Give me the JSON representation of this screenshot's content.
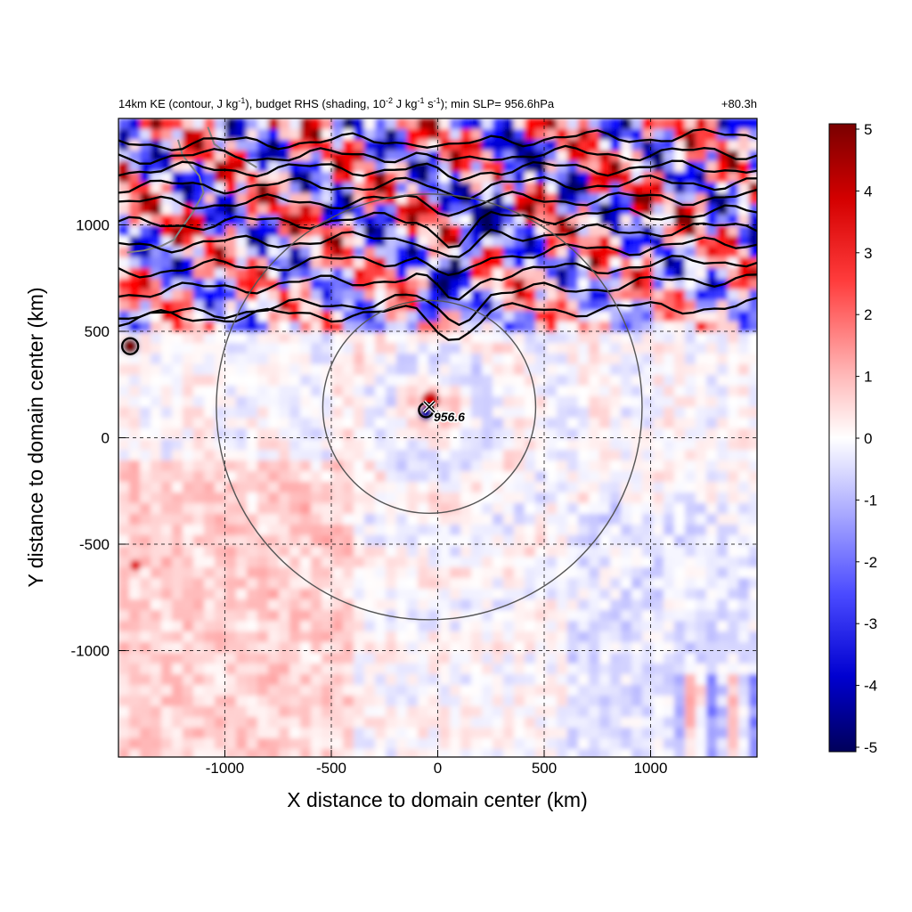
{
  "chart_data": {
    "type": "heatmap",
    "title_parts": {
      "main": "14km KE (contour, J kg",
      "sup1": "-1",
      "mid1": "), budget RHS (shading, 10",
      "sup2": "-2",
      "mid2": " J kg",
      "sup3": "-1",
      "mid3": " s",
      "sup4": "-1",
      "end": "); min SLP= 956.6hPa"
    },
    "forecast_time": "+80.3h",
    "xlabel": "X distance to domain center (km)",
    "ylabel": "Y distance to domain center (km)",
    "xlim": [
      -1500,
      1500
    ],
    "ylim": [
      -1500,
      1500
    ],
    "x_ticks": [
      -1000,
      -500,
      0,
      500,
      1000
    ],
    "y_ticks": [
      -1000,
      -500,
      0,
      500,
      1000
    ],
    "x_tick_labels": [
      "-1000",
      "-500",
      "0",
      "500",
      "1000"
    ],
    "y_tick_labels": [
      "-1000",
      "-500",
      "0",
      "500",
      "1000"
    ],
    "grid": true,
    "colorbar": {
      "min": -5,
      "max": 5,
      "ticks": [
        5,
        4,
        3,
        2,
        1,
        0,
        -1,
        -2,
        -3,
        -4,
        -5
      ],
      "tick_labels": [
        "5",
        "4",
        "3",
        "2",
        "1",
        "0",
        "-1",
        "-2",
        "-3",
        "-4",
        "-5"
      ],
      "colors": {
        "max": "#7a0000",
        "high": "#ff0000",
        "zero": "#ffffff",
        "low": "#0000ff",
        "min": "#00005a"
      }
    },
    "center_marker": {
      "x": -40,
      "y": 145,
      "label": "956.6"
    },
    "rings": [
      {
        "cx": -40,
        "cy": 145,
        "radius_km": 500
      },
      {
        "cx": -40,
        "cy": 145,
        "radius_km": 1000
      }
    ],
    "contour_levels_y_west": [
      1380,
      1320,
      1260,
      1180,
      1100,
      1000,
      900,
      780,
      680,
      560
    ],
    "contour_levels_y_east": [
      1420,
      1340,
      1270,
      1200,
      1130,
      1060,
      990,
      920,
      840,
      760,
      620
    ]
  }
}
